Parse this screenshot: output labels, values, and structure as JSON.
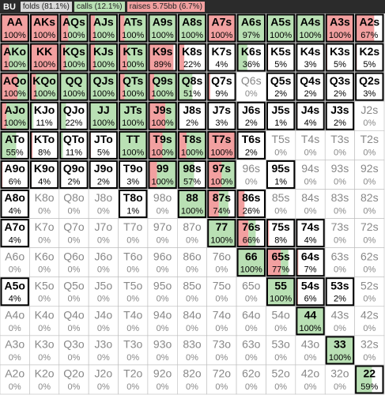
{
  "header": {
    "position": "BU",
    "folds": "folds (81.1%)",
    "calls": "calls (12.1%)",
    "raises": "raises 5.75bb (6.7%)"
  },
  "grid": {
    "rows": [
      [
        [
          "AA",
          "100%",
          100,
          0
        ],
        [
          "AKs",
          "100%",
          100,
          0
        ],
        [
          "AQs",
          "100%",
          30,
          70
        ],
        [
          "AJs",
          "100%",
          20,
          80
        ],
        [
          "ATs",
          "100%",
          20,
          80
        ],
        [
          "A9s",
          "100%",
          0,
          100
        ],
        [
          "A8s",
          "100%",
          0,
          100
        ],
        [
          "A7s",
          "100%",
          100,
          0
        ],
        [
          "A6s",
          "97%",
          0,
          97
        ],
        [
          "A5s",
          "100%",
          0,
          100
        ],
        [
          "A4s",
          "100%",
          0,
          100
        ],
        [
          "A3s",
          "100%",
          100,
          0
        ],
        [
          "A2s",
          "67%",
          67,
          0
        ]
      ],
      [
        [
          "AKo",
          "100%",
          30,
          70
        ],
        [
          "KK",
          "100%",
          100,
          0
        ],
        [
          "KQs",
          "100%",
          20,
          80
        ],
        [
          "KJs",
          "100%",
          20,
          80
        ],
        [
          "KTs",
          "100%",
          30,
          70
        ],
        [
          "K9s",
          "89%",
          89,
          0
        ],
        [
          "K8s",
          "22%",
          22,
          0
        ],
        [
          "K7s",
          "4%",
          4,
          0
        ],
        [
          "K6s",
          "36%",
          0,
          36
        ],
        [
          "K5s",
          "5%",
          5,
          0
        ],
        [
          "K4s",
          "3%",
          3,
          0
        ],
        [
          "K3s",
          "5%",
          5,
          0
        ],
        [
          "K2s",
          "5%",
          5,
          0
        ]
      ],
      [
        [
          "AQo",
          "100%",
          60,
          40
        ],
        [
          "KQo",
          "100%",
          20,
          80
        ],
        [
          "QQ",
          "100%",
          0,
          100
        ],
        [
          "QJs",
          "100%",
          0,
          100
        ],
        [
          "QTs",
          "100%",
          20,
          80
        ],
        [
          "Q9s",
          "100%",
          20,
          80
        ],
        [
          "Q8s",
          "51%",
          0,
          51
        ],
        [
          "Q7s",
          "9%",
          9,
          0
        ],
        [
          "Q6s",
          "0%",
          0,
          0
        ],
        [
          "Q5s",
          "2%",
          2,
          0
        ],
        [
          "Q4s",
          "2%",
          2,
          0
        ],
        [
          "Q3s",
          "2%",
          2,
          0
        ],
        [
          "Q2s",
          "3%",
          3,
          0
        ]
      ],
      [
        [
          "AJo",
          "100%",
          20,
          80
        ],
        [
          "KJo",
          "11%",
          0,
          11
        ],
        [
          "QJo",
          "22%",
          0,
          22
        ],
        [
          "JJ",
          "100%",
          0,
          100
        ],
        [
          "JTs",
          "100%",
          0,
          100
        ],
        [
          "J9s",
          "100%",
          60,
          40
        ],
        [
          "J8s",
          "2%",
          2,
          0
        ],
        [
          "J7s",
          "3%",
          3,
          0
        ],
        [
          "J6s",
          "2%",
          2,
          0
        ],
        [
          "J5s",
          "1%",
          1,
          0
        ],
        [
          "J4s",
          "4%",
          4,
          0
        ],
        [
          "J3s",
          "2%",
          2,
          0
        ],
        [
          "J2s",
          "0%",
          0,
          0
        ]
      ],
      [
        [
          "ATo",
          "55%",
          0,
          55
        ],
        [
          "KTo",
          "8%",
          8,
          0
        ],
        [
          "QTo",
          "11%",
          0,
          11
        ],
        [
          "JTo",
          "5%",
          5,
          0
        ],
        [
          "TT",
          "100%",
          0,
          100
        ],
        [
          "T9s",
          "100%",
          50,
          50
        ],
        [
          "T8s",
          "100%",
          30,
          70
        ],
        [
          "T7s",
          "100%",
          100,
          0
        ],
        [
          "T6s",
          "2%",
          2,
          0
        ],
        [
          "T5s",
          "0%",
          0,
          0
        ],
        [
          "T4s",
          "0%",
          0,
          0
        ],
        [
          "T3s",
          "0%",
          0,
          0
        ],
        [
          "T2s",
          "0%",
          0,
          0
        ]
      ],
      [
        [
          "A9o",
          "6%",
          6,
          0
        ],
        [
          "K9o",
          "4%",
          4,
          0
        ],
        [
          "Q9o",
          "2%",
          2,
          0
        ],
        [
          "J9o",
          "2%",
          2,
          0
        ],
        [
          "T9o",
          "3%",
          3,
          0
        ],
        [
          "99",
          "100%",
          30,
          70
        ],
        [
          "98s",
          "57%",
          0,
          57
        ],
        [
          "97s",
          "100%",
          50,
          50
        ],
        [
          "96s",
          "0%",
          0,
          0
        ],
        [
          "95s",
          "1%",
          1,
          0
        ],
        [
          "94s",
          "0%",
          0,
          0
        ],
        [
          "93s",
          "0%",
          0,
          0
        ],
        [
          "92s",
          "0%",
          0,
          0
        ]
      ],
      [
        [
          "A8o",
          "4%",
          4,
          0
        ],
        [
          "K8o",
          "0%",
          0,
          0
        ],
        [
          "Q8o",
          "0%",
          0,
          0
        ],
        [
          "J8o",
          "0%",
          0,
          0
        ],
        [
          "T8o",
          "1%",
          1,
          0
        ],
        [
          "98o",
          "0%",
          0,
          0
        ],
        [
          "88",
          "100%",
          0,
          100
        ],
        [
          "87s",
          "74%",
          40,
          34
        ],
        [
          "86s",
          "26%",
          26,
          0
        ],
        [
          "85s",
          "0%",
          0,
          0
        ],
        [
          "84s",
          "0%",
          0,
          0
        ],
        [
          "83s",
          "0%",
          0,
          0
        ],
        [
          "82s",
          "0%",
          0,
          0
        ]
      ],
      [
        [
          "A7o",
          "4%",
          4,
          0
        ],
        [
          "K7o",
          "0%",
          0,
          0
        ],
        [
          "Q7o",
          "0%",
          0,
          0
        ],
        [
          "J7o",
          "0%",
          0,
          0
        ],
        [
          "T7o",
          "0%",
          0,
          0
        ],
        [
          "97o",
          "0%",
          0,
          0
        ],
        [
          "87o",
          "0%",
          0,
          0
        ],
        [
          "77",
          "100%",
          0,
          100
        ],
        [
          "76s",
          "66%",
          40,
          26
        ],
        [
          "75s",
          "8%",
          8,
          0
        ],
        [
          "74s",
          "4%",
          4,
          0
        ],
        [
          "73s",
          "0%",
          0,
          0
        ],
        [
          "72s",
          "0%",
          0,
          0
        ]
      ],
      [
        [
          "A6o",
          "0%",
          0,
          0
        ],
        [
          "K6o",
          "0%",
          0,
          0
        ],
        [
          "Q6o",
          "0%",
          0,
          0
        ],
        [
          "J6o",
          "0%",
          0,
          0
        ],
        [
          "T6o",
          "0%",
          0,
          0
        ],
        [
          "96o",
          "0%",
          0,
          0
        ],
        [
          "86o",
          "0%",
          0,
          0
        ],
        [
          "76o",
          "0%",
          0,
          0
        ],
        [
          "66",
          "100%",
          0,
          100
        ],
        [
          "65s",
          "77%",
          50,
          27
        ],
        [
          "64s",
          "7%",
          7,
          0
        ],
        [
          "63s",
          "0%",
          0,
          0
        ],
        [
          "62s",
          "0%",
          0,
          0
        ]
      ],
      [
        [
          "A5o",
          "4%",
          4,
          0
        ],
        [
          "K5o",
          "0%",
          0,
          0
        ],
        [
          "Q5o",
          "0%",
          0,
          0
        ],
        [
          "J5o",
          "0%",
          0,
          0
        ],
        [
          "T5o",
          "0%",
          0,
          0
        ],
        [
          "95o",
          "0%",
          0,
          0
        ],
        [
          "85o",
          "0%",
          0,
          0
        ],
        [
          "75o",
          "0%",
          0,
          0
        ],
        [
          "65o",
          "0%",
          0,
          0
        ],
        [
          "55",
          "100%",
          0,
          100
        ],
        [
          "54s",
          "6%",
          6,
          0
        ],
        [
          "53s",
          "2%",
          2,
          0
        ],
        [
          "52s",
          "0%",
          0,
          0
        ]
      ],
      [
        [
          "A4o",
          "0%",
          0,
          0
        ],
        [
          "K4o",
          "0%",
          0,
          0
        ],
        [
          "Q4o",
          "0%",
          0,
          0
        ],
        [
          "J4o",
          "0%",
          0,
          0
        ],
        [
          "T4o",
          "0%",
          0,
          0
        ],
        [
          "94o",
          "0%",
          0,
          0
        ],
        [
          "84o",
          "0%",
          0,
          0
        ],
        [
          "74o",
          "0%",
          0,
          0
        ],
        [
          "64o",
          "0%",
          0,
          0
        ],
        [
          "54o",
          "0%",
          0,
          0
        ],
        [
          "44",
          "100%",
          0,
          100
        ],
        [
          "43s",
          "0%",
          0,
          0
        ],
        [
          "42s",
          "0%",
          0,
          0
        ]
      ],
      [
        [
          "A3o",
          "0%",
          0,
          0
        ],
        [
          "K3o",
          "0%",
          0,
          0
        ],
        [
          "Q3o",
          "0%",
          0,
          0
        ],
        [
          "J3o",
          "0%",
          0,
          0
        ],
        [
          "T3o",
          "0%",
          0,
          0
        ],
        [
          "93o",
          "0%",
          0,
          0
        ],
        [
          "83o",
          "0%",
          0,
          0
        ],
        [
          "73o",
          "0%",
          0,
          0
        ],
        [
          "63o",
          "0%",
          0,
          0
        ],
        [
          "53o",
          "0%",
          0,
          0
        ],
        [
          "43o",
          "0%",
          0,
          0
        ],
        [
          "33",
          "100%",
          0,
          100
        ],
        [
          "32s",
          "0%",
          0,
          0
        ]
      ],
      [
        [
          "A2o",
          "0%",
          0,
          0
        ],
        [
          "K2o",
          "0%",
          0,
          0
        ],
        [
          "Q2o",
          "0%",
          0,
          0
        ],
        [
          "J2o",
          "0%",
          0,
          0
        ],
        [
          "T2o",
          "0%",
          0,
          0
        ],
        [
          "92o",
          "0%",
          0,
          0
        ],
        [
          "82o",
          "0%",
          0,
          0
        ],
        [
          "72o",
          "0%",
          0,
          0
        ],
        [
          "62o",
          "0%",
          0,
          0
        ],
        [
          "52o",
          "0%",
          0,
          0
        ],
        [
          "42o",
          "0%",
          0,
          0
        ],
        [
          "32o",
          "0%",
          0,
          0
        ],
        [
          "22",
          "59%",
          0,
          59
        ]
      ]
    ]
  }
}
